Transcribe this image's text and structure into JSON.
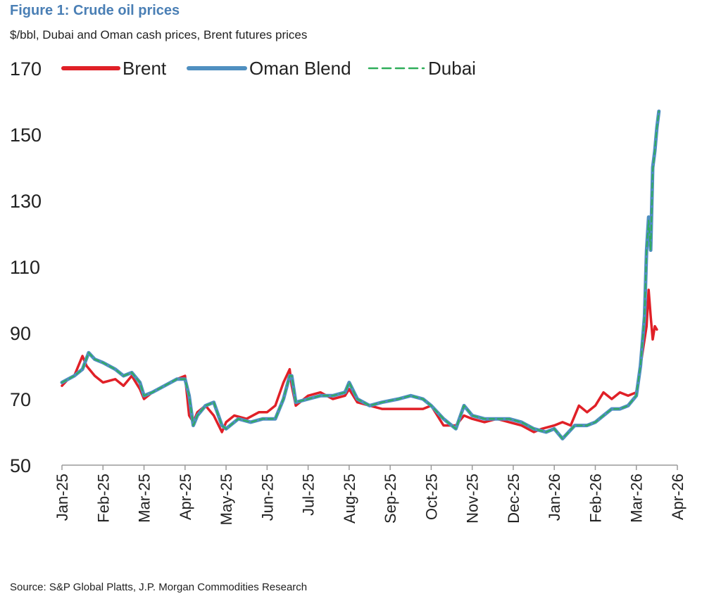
{
  "figure": {
    "title": "Figure 1: Crude oil prices",
    "subtitle": "$/bbl, Dubai and Oman cash prices, Brent futures prices",
    "source": "Source: S&P Global Platts, J.P. Morgan Commodities Research"
  },
  "colors": {
    "brent": "#e02027",
    "oman": "#4f8fc0",
    "dubai": "#2fae5a",
    "axis": "#9a9a9a"
  },
  "chart_data": {
    "type": "line",
    "title": "Figure 1: Crude oil prices",
    "ylabel": "$/bbl",
    "xlabel": "",
    "ylim": [
      50,
      170
    ],
    "yticks": [
      50,
      70,
      90,
      110,
      130,
      150,
      170
    ],
    "xlim": [
      0,
      15
    ],
    "categories": [
      "Jan-25",
      "Feb-25",
      "Mar-25",
      "Apr-25",
      "May-25",
      "Jun-25",
      "Jul-25",
      "Aug-25",
      "Sep-25",
      "Oct-25",
      "Nov-25",
      "Dec-25",
      "Jan-26",
      "Feb-26",
      "Mar-26",
      "Apr-26"
    ],
    "legend_position": "top",
    "grid": false,
    "series": [
      {
        "name": "Brent",
        "x": [
          0,
          0.15,
          0.3,
          0.5,
          0.6,
          0.8,
          1.0,
          1.3,
          1.5,
          1.7,
          1.9,
          2.0,
          2.2,
          2.5,
          2.8,
          3.0,
          3.1,
          3.2,
          3.3,
          3.5,
          3.7,
          3.9,
          4.0,
          4.2,
          4.5,
          4.8,
          5.0,
          5.2,
          5.4,
          5.55,
          5.6,
          5.7,
          6.0,
          6.3,
          6.6,
          6.9,
          7.0,
          7.2,
          7.5,
          7.8,
          8.2,
          8.5,
          8.8,
          9.0,
          9.3,
          9.6,
          9.8,
          10.0,
          10.3,
          10.6,
          10.9,
          11.2,
          11.5,
          11.7,
          12.0,
          12.2,
          12.4,
          12.6,
          12.8,
          13.0,
          13.2,
          13.4,
          13.6,
          13.8,
          14.0,
          14.1,
          14.2,
          14.25,
          14.3,
          14.35,
          14.4,
          14.45,
          14.5
        ],
        "values": [
          74,
          76,
          77,
          83,
          80,
          77,
          75,
          76,
          74,
          77,
          73,
          70,
          72,
          74,
          76,
          77,
          65,
          63,
          66,
          68,
          65,
          60,
          63,
          65,
          64,
          66,
          66,
          68,
          75,
          79,
          74,
          68,
          71,
          72,
          70,
          71,
          73,
          69,
          68,
          67,
          67,
          67,
          67,
          68,
          62,
          62,
          65,
          64,
          63,
          64,
          63,
          62,
          60,
          61,
          62,
          63,
          62,
          68,
          66,
          68,
          72,
          70,
          72,
          71,
          72,
          80,
          88,
          92,
          103,
          95,
          88,
          92,
          91
        ]
      },
      {
        "name": "Oman Blend",
        "x": [
          0,
          0.3,
          0.5,
          0.65,
          0.8,
          1.0,
          1.3,
          1.5,
          1.7,
          1.9,
          2.0,
          2.2,
          2.5,
          2.8,
          3.0,
          3.1,
          3.2,
          3.3,
          3.5,
          3.7,
          3.9,
          4.0,
          4.3,
          4.6,
          4.9,
          5.2,
          5.4,
          5.55,
          5.6,
          5.7,
          6.0,
          6.3,
          6.6,
          6.9,
          7.0,
          7.2,
          7.5,
          7.8,
          8.2,
          8.5,
          8.8,
          9.0,
          9.3,
          9.6,
          9.8,
          10.0,
          10.3,
          10.6,
          10.9,
          11.2,
          11.5,
          11.8,
          12.0,
          12.2,
          12.5,
          12.8,
          13.0,
          13.2,
          13.4,
          13.6,
          13.8,
          14.0,
          14.1,
          14.2,
          14.25,
          14.3,
          14.35,
          14.4,
          14.45,
          14.5,
          14.55
        ],
        "values": [
          75,
          77,
          79,
          84,
          82,
          81,
          79,
          77,
          78,
          75,
          71,
          72,
          74,
          76,
          76,
          71,
          62,
          65,
          68,
          69,
          62,
          61,
          64,
          63,
          64,
          64,
          70,
          77,
          77,
          69,
          70,
          71,
          71,
          72,
          75,
          70,
          68,
          69,
          70,
          71,
          70,
          68,
          64,
          61,
          68,
          65,
          64,
          64,
          64,
          63,
          61,
          60,
          61,
          58,
          62,
          62,
          63,
          65,
          67,
          67,
          68,
          71,
          80,
          95,
          115,
          125,
          115,
          140,
          145,
          152,
          157
        ]
      },
      {
        "name": "Dubai",
        "x": [
          0,
          0.3,
          0.5,
          0.65,
          0.8,
          1.0,
          1.3,
          1.5,
          1.7,
          1.9,
          2.0,
          2.2,
          2.5,
          2.8,
          3.0,
          3.1,
          3.2,
          3.3,
          3.5,
          3.7,
          3.9,
          4.0,
          4.3,
          4.6,
          4.9,
          5.2,
          5.4,
          5.55,
          5.6,
          5.7,
          6.0,
          6.3,
          6.6,
          6.9,
          7.0,
          7.2,
          7.5,
          7.8,
          8.2,
          8.5,
          8.8,
          9.0,
          9.3,
          9.6,
          9.8,
          10.0,
          10.3,
          10.6,
          10.9,
          11.2,
          11.5,
          11.8,
          12.0,
          12.2,
          12.5,
          12.8,
          13.0,
          13.2,
          13.4,
          13.6,
          13.8,
          14.0,
          14.1,
          14.2,
          14.25,
          14.3,
          14.35,
          14.4,
          14.45,
          14.5,
          14.55
        ],
        "values": [
          75,
          77,
          79,
          84,
          82,
          81,
          79,
          77,
          78,
          75,
          71,
          72,
          74,
          76,
          76,
          71,
          62,
          65,
          68,
          69,
          62,
          61,
          64,
          63,
          64,
          64,
          70,
          77,
          77,
          69,
          70,
          71,
          71,
          72,
          75,
          70,
          68,
          69,
          70,
          71,
          70,
          68,
          64,
          61,
          68,
          65,
          64,
          64,
          64,
          63,
          61,
          60,
          61,
          58,
          62,
          62,
          63,
          65,
          67,
          67,
          68,
          71,
          80,
          95,
          115,
          124,
          115,
          139,
          145,
          152,
          157
        ]
      }
    ]
  }
}
